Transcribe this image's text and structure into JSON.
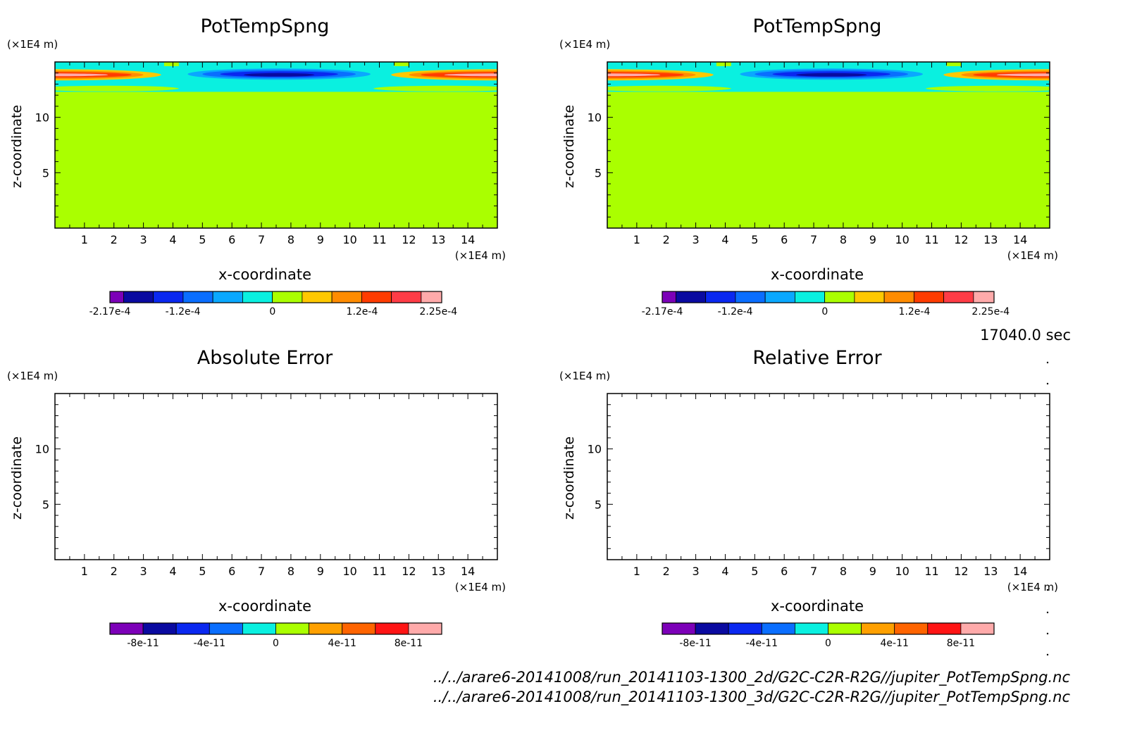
{
  "time_label": "17040.0 sec",
  "file_paths": [
    "../../arare6-20141008/run_20141103-1300_2d/G2C-C2R-R2G//jupiter_PotTempSpng.nc",
    "../../arare6-20141008/run_20141103-1300_3d/G2C-C2R-R2G//jupiter_PotTempSpng.nc"
  ],
  "colors": {
    "colorbar_top": [
      "#7c00b8",
      "#0a0aa0",
      "#0a28f0",
      "#0a6eff",
      "#0aa8ff",
      "#0af0e0",
      "#aaff00",
      "#ffc800",
      "#ff8c00",
      "#ff3c00",
      "#ff3c46",
      "#ffaaaa"
    ],
    "colorbar_bottom": [
      "#7c00b8",
      "#0a0aa0",
      "#0a28f0",
      "#0a6eff",
      "#0af0e0",
      "#aaff00",
      "#ffa000",
      "#ff6400",
      "#ff1414",
      "#ffaaaa"
    ],
    "background_field": "#aaff00"
  },
  "chart_data": [
    {
      "type": "heatmap",
      "title": "PotTempSpng",
      "xlabel": "x-coordinate",
      "ylabel": "z-coordinate",
      "x_unit": "(×1E4 m)",
      "y_unit": "(×1E4 m)",
      "xlim": [
        0,
        15
      ],
      "ylim": [
        0,
        15
      ],
      "x_ticks": [
        1,
        2,
        3,
        4,
        5,
        6,
        7,
        8,
        9,
        10,
        11,
        12,
        13,
        14
      ],
      "y_ticks": [
        5,
        10
      ],
      "colorbar_labels": [
        "-2.17e-4",
        "-1.2e-4",
        "0",
        "1.2e-4",
        "2.25e-4"
      ],
      "field": "sponge layer anomaly near z=13-15, negative centered x=7-9, positive at edges"
    },
    {
      "type": "heatmap",
      "title": "PotTempSpng",
      "xlabel": "x-coordinate",
      "ylabel": "z-coordinate",
      "x_unit": "(×1E4 m)",
      "y_unit": "(×1E4 m)",
      "xlim": [
        0,
        15
      ],
      "ylim": [
        0,
        15
      ],
      "x_ticks": [
        1,
        2,
        3,
        4,
        5,
        6,
        7,
        8,
        9,
        10,
        11,
        12,
        13,
        14
      ],
      "y_ticks": [
        5,
        10
      ],
      "colorbar_labels": [
        "-2.17e-4",
        "-1.2e-4",
        "0",
        "1.2e-4",
        "2.25e-4"
      ],
      "field": "same as left panel"
    },
    {
      "type": "heatmap",
      "title": "Absolute Error",
      "xlabel": "x-coordinate",
      "ylabel": "z-coordinate",
      "x_unit": "(×1E4 m)",
      "y_unit": "(×1E4 m)",
      "xlim": [
        0,
        15
      ],
      "ylim": [
        0,
        15
      ],
      "x_ticks": [
        1,
        2,
        3,
        4,
        5,
        6,
        7,
        8,
        9,
        10,
        11,
        12,
        13,
        14
      ],
      "y_ticks": [
        5,
        10
      ],
      "colorbar_labels": [
        "-8e-11",
        "-4e-11",
        "0",
        "4e-11",
        "8e-11"
      ],
      "field": "empty"
    },
    {
      "type": "heatmap",
      "title": "Relative Error",
      "xlabel": "x-coordinate",
      "ylabel": "z-coordinate",
      "x_unit": "(×1E4 m)",
      "y_unit": "(×1E4 m)",
      "xlim": [
        0,
        15
      ],
      "ylim": [
        0,
        15
      ],
      "x_ticks": [
        1,
        2,
        3,
        4,
        5,
        6,
        7,
        8,
        9,
        10,
        11,
        12,
        13,
        14
      ],
      "y_ticks": [
        5,
        10
      ],
      "colorbar_labels": [
        "-8e-11",
        "-4e-11",
        "0",
        "4e-11",
        "8e-11"
      ],
      "field": "empty"
    }
  ]
}
